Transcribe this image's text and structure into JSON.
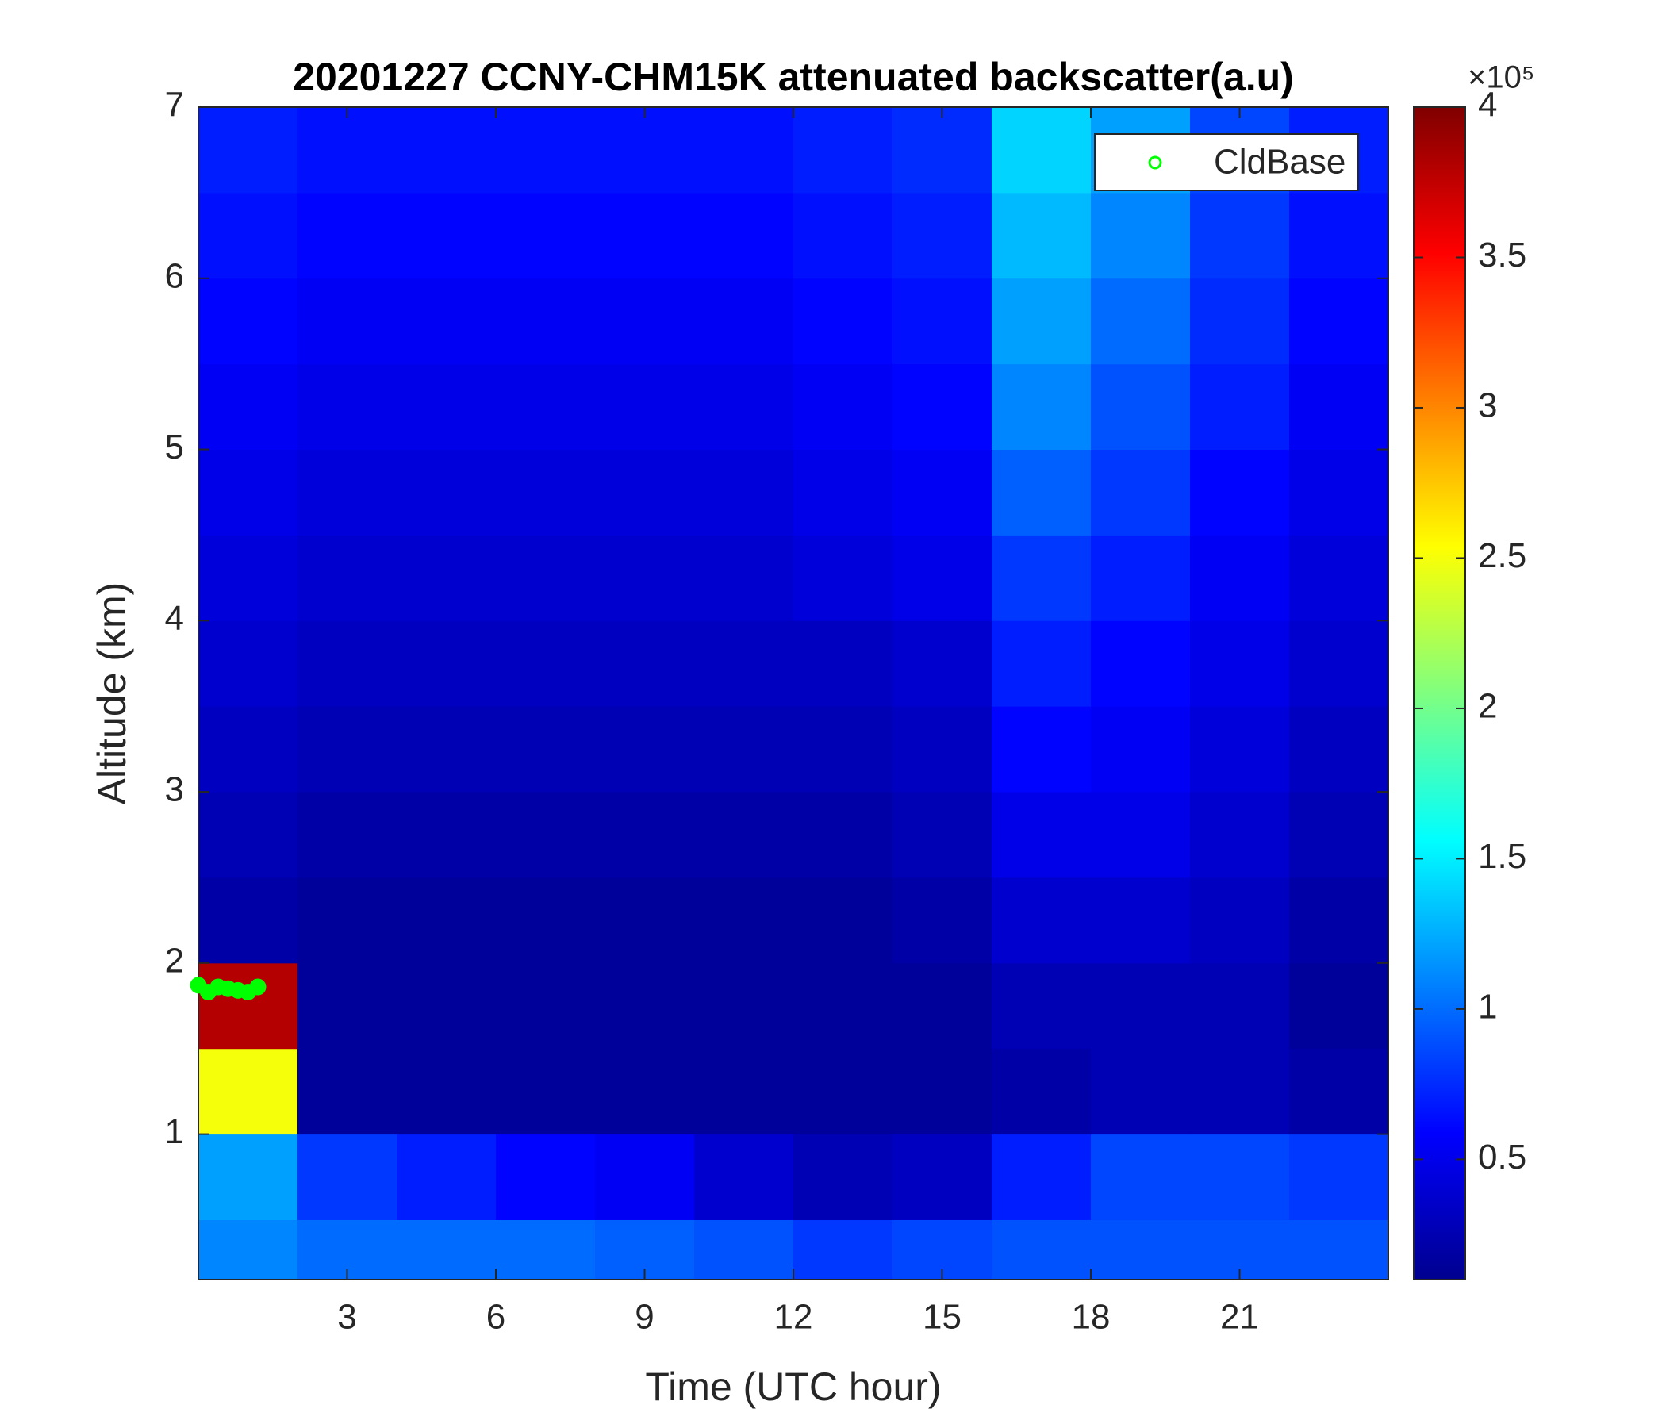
{
  "chart_data": {
    "type": "heatmap",
    "title": "20201227 CCNY-CHM15K attenuated backscatter(a.u)",
    "x_label": "Time (UTC hour)",
    "y_label": "Altitude (km)",
    "xlim": [
      0,
      24
    ],
    "ylim": [
      0.15,
      7
    ],
    "xticks": [
      3,
      6,
      9,
      12,
      15,
      18,
      21
    ],
    "yticks": [
      1,
      2,
      3,
      4,
      5,
      6,
      7
    ],
    "x_bins": [
      0,
      2,
      4,
      6,
      8,
      10,
      12,
      14,
      16,
      18,
      20,
      22,
      24
    ],
    "y_bins": [
      0.15,
      0.5,
      1,
      1.5,
      2,
      2.5,
      3,
      3.5,
      4,
      4.5,
      5,
      5.5,
      6,
      6.5,
      7
    ],
    "z": [
      [
        1.1,
        1.0,
        1.0,
        1.0,
        0.95,
        0.9,
        0.8,
        0.85,
        0.9,
        0.9,
        0.9,
        0.9
      ],
      [
        1.2,
        0.8,
        0.7,
        0.6,
        0.55,
        0.4,
        0.3,
        0.35,
        0.7,
        0.85,
        0.85,
        0.8
      ],
      [
        2.5,
        0.2,
        0.2,
        0.2,
        0.2,
        0.2,
        0.2,
        0.2,
        0.25,
        0.3,
        0.3,
        0.25
      ],
      [
        3.8,
        0.2,
        0.2,
        0.2,
        0.2,
        0.2,
        0.2,
        0.2,
        0.3,
        0.3,
        0.3,
        0.2
      ],
      [
        0.25,
        0.2,
        0.2,
        0.2,
        0.2,
        0.2,
        0.2,
        0.25,
        0.4,
        0.4,
        0.35,
        0.25
      ],
      [
        0.3,
        0.25,
        0.25,
        0.25,
        0.25,
        0.25,
        0.25,
        0.3,
        0.5,
        0.5,
        0.4,
        0.3
      ],
      [
        0.35,
        0.3,
        0.3,
        0.3,
        0.3,
        0.3,
        0.3,
        0.35,
        0.6,
        0.55,
        0.45,
        0.35
      ],
      [
        0.4,
        0.35,
        0.35,
        0.35,
        0.35,
        0.35,
        0.35,
        0.4,
        0.7,
        0.6,
        0.5,
        0.4
      ],
      [
        0.45,
        0.4,
        0.4,
        0.4,
        0.4,
        0.4,
        0.45,
        0.5,
        0.8,
        0.7,
        0.55,
        0.45
      ],
      [
        0.5,
        0.45,
        0.45,
        0.45,
        0.45,
        0.45,
        0.5,
        0.55,
        0.95,
        0.8,
        0.6,
        0.5
      ],
      [
        0.55,
        0.5,
        0.5,
        0.5,
        0.5,
        0.5,
        0.55,
        0.6,
        1.1,
        0.9,
        0.7,
        0.55
      ],
      [
        0.6,
        0.55,
        0.55,
        0.55,
        0.55,
        0.55,
        0.6,
        0.65,
        1.2,
        1.0,
        0.75,
        0.6
      ],
      [
        0.65,
        0.6,
        0.6,
        0.6,
        0.6,
        0.6,
        0.65,
        0.7,
        1.3,
        1.1,
        0.8,
        0.65
      ],
      [
        0.7,
        0.65,
        0.65,
        0.65,
        0.65,
        0.65,
        0.7,
        0.75,
        1.4,
        1.2,
        0.85,
        0.7
      ]
    ],
    "colormap": "jet",
    "clim": [
      0.1,
      4
    ],
    "colorbar_ticks": [
      0.5,
      1,
      1.5,
      2,
      2.5,
      3,
      3.5,
      4
    ],
    "colorbar_multiplier": "×10⁵",
    "series": [
      {
        "name": "CldBase",
        "color": "#00ff00",
        "x": [
          0,
          0.2,
          0.4,
          0.6,
          0.8,
          1.0,
          1.2
        ],
        "values": [
          1.87,
          1.83,
          1.86,
          1.85,
          1.84,
          1.83,
          1.86
        ]
      }
    ],
    "legend": "upper right"
  }
}
